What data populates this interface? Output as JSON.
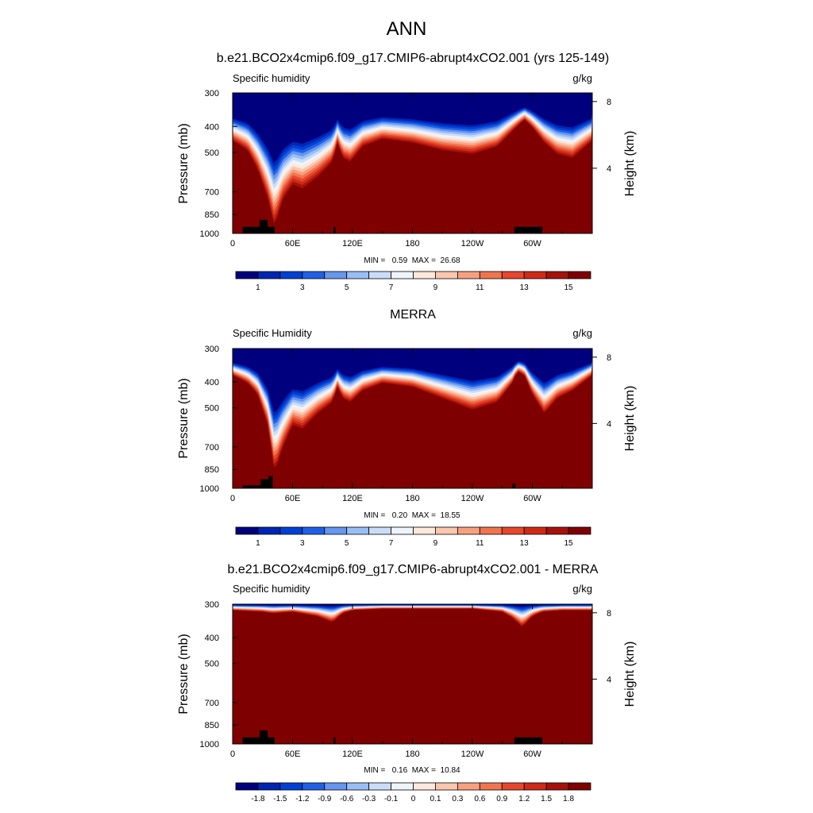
{
  "figure": {
    "title": "ANN"
  },
  "colorbars": {
    "abs": {
      "colors": [
        "#00007f",
        "#0025b2",
        "#0041d5",
        "#2160e6",
        "#6696ee",
        "#99bef5",
        "#cadcf8",
        "#eef4fb",
        "#fde8dc",
        "#fbc6ae",
        "#f7a080",
        "#f0754f",
        "#e6472d",
        "#cf2a16",
        "#a6120b",
        "#7f0000"
      ],
      "labels": [
        "1",
        "3",
        "5",
        "7",
        "9",
        "11",
        "13",
        "15"
      ]
    },
    "diff": {
      "colors": [
        "#00007f",
        "#0025b2",
        "#0041d5",
        "#2160e6",
        "#6696ee",
        "#99bef5",
        "#cadcf8",
        "#eef4fb",
        "#fde8dc",
        "#fbc6ae",
        "#f7a080",
        "#f0754f",
        "#e6472d",
        "#cf2a16",
        "#a6120b",
        "#7f0000"
      ],
      "labels": [
        "-1.8",
        "-1.5",
        "-1.2",
        "-0.9",
        "-0.6",
        "-0.3",
        "-0.1",
        "0",
        "0.1",
        "0.3",
        "0.6",
        "0.9",
        "1.2",
        "1.5",
        "1.8"
      ]
    }
  },
  "chart_data": [
    {
      "type": "heatmap",
      "id": "model",
      "title": "b.e21.BCO2x4cmip6.f09_g17.CMIP6-abrupt4xCO2.001 (yrs 125-149)",
      "left_label": "Specific humidity",
      "right_label": "g/kg",
      "ylabel": "Pressure (mb)",
      "ylabel_right": "Height (km)",
      "stats": "MIN =   0.59  MAX =  26.68",
      "x_ticks": [
        "0",
        "60E",
        "120E",
        "180",
        "120W",
        "60W"
      ],
      "x_tick_lon": [
        0,
        60,
        120,
        180,
        240,
        300
      ],
      "xlim": [
        0,
        360
      ],
      "y_ticks": [
        "300",
        "400",
        "500",
        "700",
        "850",
        "1000"
      ],
      "y_tick_values": [
        300,
        400,
        500,
        700,
        850,
        1000
      ],
      "ylim": [
        300,
        1000
      ],
      "y_scale": "log",
      "y_right_ticks": [
        "8",
        "4"
      ],
      "y_right_values": [
        8,
        4
      ],
      "colorbar": "abs",
      "min": 0.59,
      "max": 26.68,
      "levels": [
        0.5,
        1,
        2,
        3,
        4,
        5,
        6,
        7,
        8,
        9,
        10,
        11,
        12,
        13,
        14,
        15
      ],
      "profile_lon": [
        0,
        15,
        25,
        35,
        42,
        50,
        60,
        70,
        85,
        100,
        105,
        110,
        118,
        130,
        150,
        180,
        210,
        240,
        265,
        280,
        292,
        300,
        312,
        325,
        340,
        360
      ],
      "profile_slope": [
        25,
        30,
        40,
        55,
        70,
        56,
        48,
        50,
        44,
        36,
        26,
        34,
        36,
        28,
        24,
        26,
        30,
        32,
        28,
        20,
        14,
        18,
        26,
        32,
        34,
        25
      ],
      "topography": [
        {
          "lon0": 10,
          "lon1": 42,
          "p": 945
        },
        {
          "lon0": 27,
          "lon1": 35,
          "p": 890
        },
        {
          "lon0": 101,
          "lon1": 103,
          "p": 945
        },
        {
          "lon0": 282,
          "lon1": 310,
          "p": 945
        }
      ]
    },
    {
      "type": "heatmap",
      "id": "obs",
      "title": "MERRA",
      "left_label": "Specific Humidity",
      "right_label": "g/kg",
      "ylabel": "Pressure (mb)",
      "ylabel_right": "Height (km)",
      "stats": "MIN =   0.20  MAX =  18.55",
      "x_ticks": [
        "0",
        "60E",
        "120E",
        "180",
        "120W",
        "60W"
      ],
      "x_tick_lon": [
        0,
        60,
        120,
        180,
        240,
        300
      ],
      "xlim": [
        0,
        360
      ],
      "y_ticks": [
        "300",
        "400",
        "500",
        "700",
        "850",
        "1000"
      ],
      "y_tick_values": [
        300,
        400,
        500,
        700,
        850,
        1000
      ],
      "ylim": [
        300,
        1000
      ],
      "y_scale": "log",
      "y_right_ticks": [
        "8",
        "4"
      ],
      "y_right_values": [
        8,
        4
      ],
      "colorbar": "abs",
      "min": 0.2,
      "max": 18.55,
      "levels": [
        0.5,
        1,
        2,
        3,
        4,
        5,
        6,
        7,
        8,
        9,
        10,
        11,
        12,
        13,
        14,
        15
      ],
      "profile_lon": [
        0,
        15,
        25,
        35,
        42,
        50,
        60,
        70,
        85,
        100,
        105,
        110,
        118,
        130,
        150,
        180,
        210,
        240,
        265,
        280,
        285,
        292,
        300,
        312,
        325,
        340,
        360
      ],
      "profile_slope": [
        14,
        18,
        24,
        40,
        65,
        52,
        40,
        42,
        34,
        28,
        20,
        26,
        28,
        22,
        18,
        20,
        26,
        32,
        28,
        18,
        12,
        14,
        24,
        34,
        26,
        22,
        14
      ],
      "topography": [
        {
          "lon0": 10,
          "lon1": 40,
          "p": 975
        },
        {
          "lon0": 28,
          "lon1": 36,
          "p": 925
        },
        {
          "lon0": 36,
          "lon1": 40,
          "p": 900
        },
        {
          "lon0": 280,
          "lon1": 283,
          "p": 960
        }
      ]
    },
    {
      "type": "heatmap",
      "id": "diff",
      "title": "b.e21.BCO2x4cmip6.f09_g17.CMIP6-abrupt4xCO2.001 - MERRA",
      "left_label": "Specific humidity",
      "right_label": "g/kg",
      "ylabel": "Pressure (mb)",
      "ylabel_right": "Height (km)",
      "stats": "MIN =   0.16  MAX =  10.84",
      "x_ticks": [
        "0",
        "60E",
        "120E",
        "180",
        "120W",
        "60W"
      ],
      "x_tick_lon": [
        0,
        60,
        120,
        180,
        240,
        300
      ],
      "xlim": [
        0,
        360
      ],
      "y_ticks": [
        "300",
        "400",
        "500",
        "700",
        "850",
        "1000"
      ],
      "y_tick_values": [
        300,
        400,
        500,
        700,
        850,
        1000
      ],
      "ylim": [
        300,
        1000
      ],
      "y_scale": "log",
      "y_right_ticks": [
        "8",
        "4"
      ],
      "y_right_values": [
        8,
        4
      ],
      "colorbar": "diff",
      "min": 0.16,
      "max": 10.84,
      "levels": [
        -1.8,
        -1.5,
        -1.2,
        -0.9,
        -0.6,
        -0.3,
        -0.1,
        0,
        0.1,
        0.3,
        0.6,
        0.9,
        1.2,
        1.5,
        1.8
      ],
      "profile_lon": [
        0,
        30,
        40,
        60,
        85,
        100,
        110,
        120,
        150,
        180,
        240,
        270,
        280,
        290,
        300,
        310,
        330,
        360
      ],
      "profile_slope": [
        8,
        10,
        12,
        10,
        16,
        24,
        12,
        8,
        6,
        6,
        6,
        10,
        18,
        30,
        16,
        10,
        8,
        8
      ],
      "topography": [
        {
          "lon0": 10,
          "lon1": 42,
          "p": 945
        },
        {
          "lon0": 27,
          "lon1": 35,
          "p": 890
        },
        {
          "lon0": 101,
          "lon1": 103,
          "p": 945
        },
        {
          "lon0": 282,
          "lon1": 310,
          "p": 945
        }
      ]
    }
  ]
}
